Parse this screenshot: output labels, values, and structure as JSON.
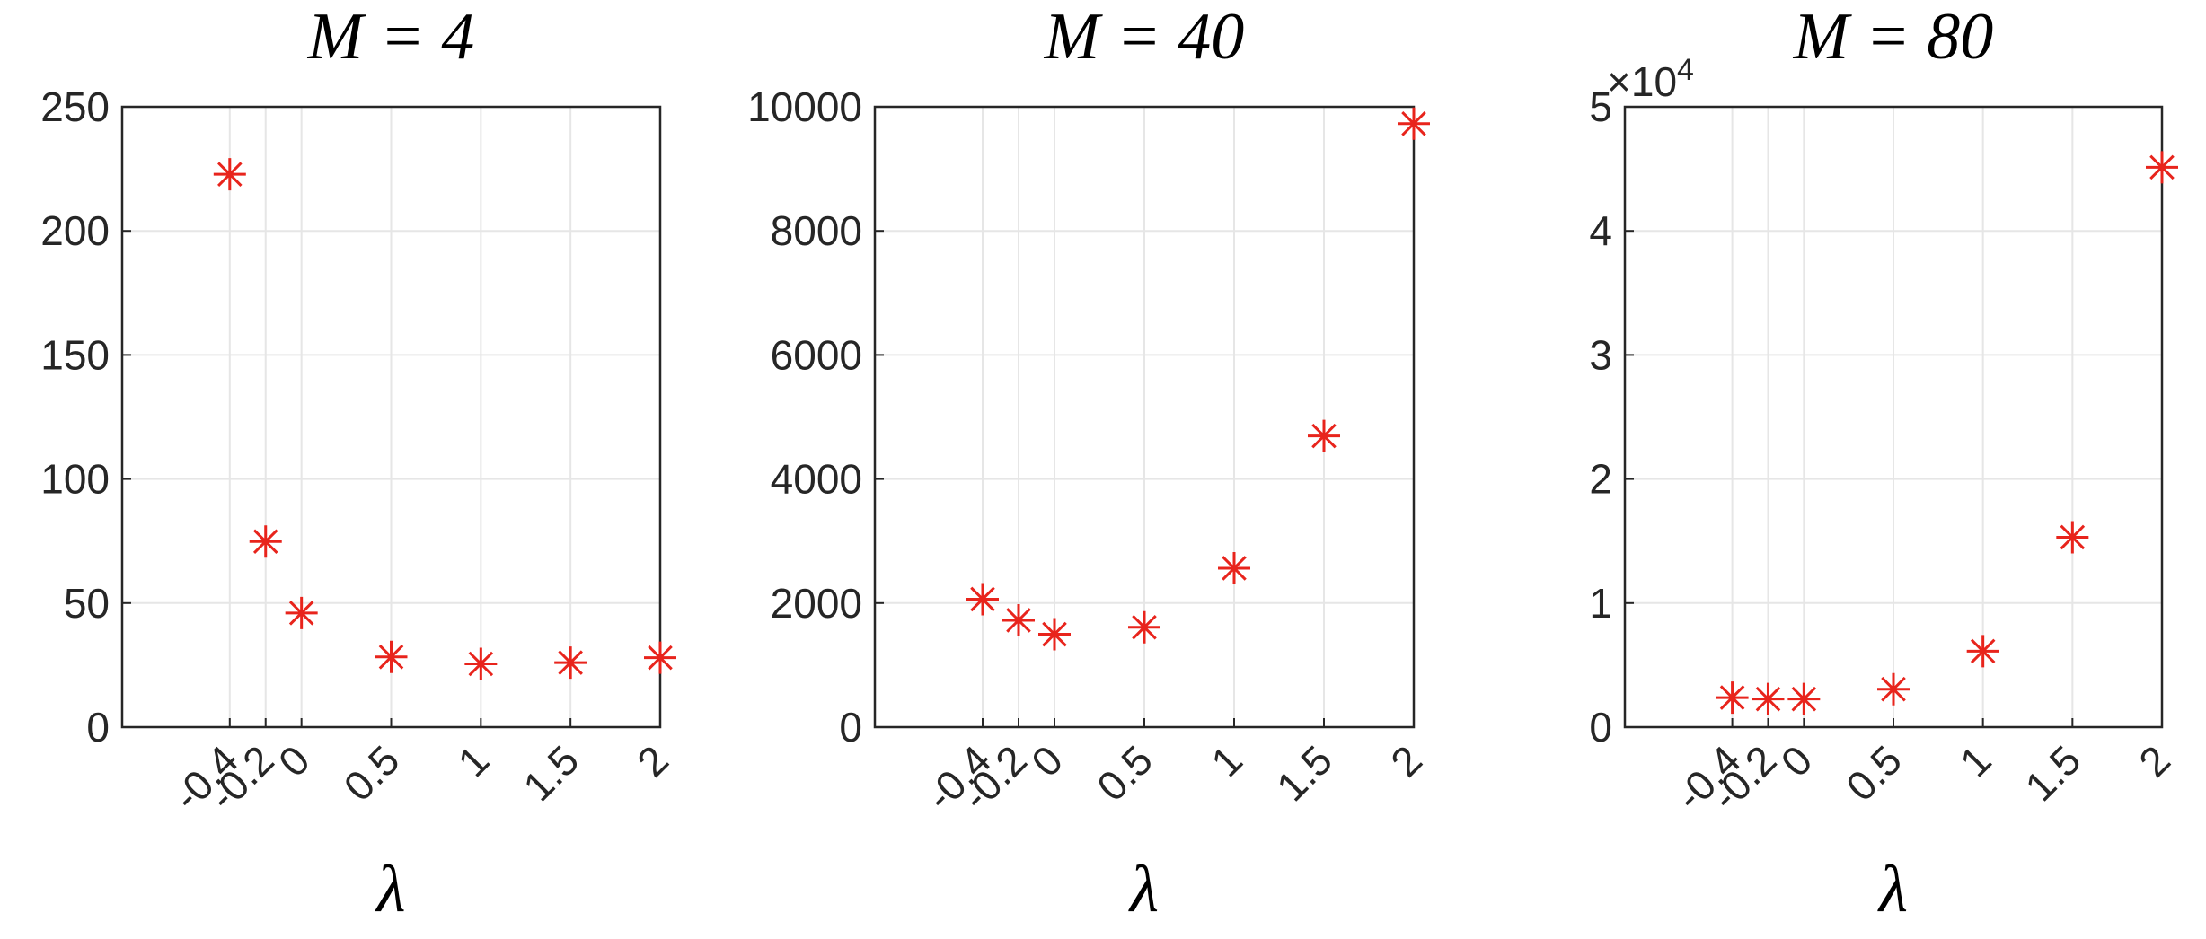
{
  "chart_data": [
    {
      "type": "scatter",
      "title": "M = 4",
      "x_label": "λ",
      "x": [
        -0.4,
        -0.2,
        0,
        0.5,
        1,
        1.5,
        2
      ],
      "series": [
        {
          "color": "#e8241c",
          "values": [
            222.8,
            74.8,
            46,
            28.3,
            25.5,
            26,
            28
          ]
        }
      ],
      "xlim": [
        -1,
        2
      ],
      "xticks": [
        -0.4,
        -0.2,
        0,
        0.5,
        1,
        1.5,
        2
      ],
      "ylim": [
        0,
        250
      ],
      "yticks": [
        0,
        50,
        100,
        150,
        200,
        250
      ],
      "grid": true
    },
    {
      "type": "scatter",
      "title": "M = 40",
      "x_label": "λ",
      "x": [
        -0.4,
        -0.2,
        0,
        0.5,
        1,
        1.5,
        2
      ],
      "series": [
        {
          "color": "#e8241c",
          "values": [
            2063,
            1723,
            1497,
            1610,
            2562,
            4694,
            9728
          ]
        }
      ],
      "xlim": [
        -1,
        2
      ],
      "xticks": [
        -0.4,
        -0.2,
        0,
        0.5,
        1,
        1.5,
        2
      ],
      "ylim": [
        0,
        10000
      ],
      "yticks": [
        0,
        2000,
        4000,
        6000,
        8000,
        10000
      ],
      "grid": true
    },
    {
      "type": "scatter",
      "title": "M = 80",
      "x_label": "λ",
      "y_multiplier": "×10",
      "y_exponent": "4",
      "x": [
        -0.4,
        -0.2,
        0,
        0.5,
        1,
        1.5,
        2
      ],
      "series": [
        {
          "color": "#e8241c",
          "values": [
            2381,
            2268,
            2268,
            3061,
            6122,
            15306,
            45125
          ]
        }
      ],
      "xlim": [
        -1,
        2
      ],
      "xticks": [
        -0.4,
        -0.2,
        0,
        0.5,
        1,
        1.5,
        2
      ],
      "ylim": [
        0,
        50000
      ],
      "yticks": [
        {
          "value": 0,
          "label": "0"
        },
        {
          "value": 10000,
          "label": "1"
        },
        {
          "value": 20000,
          "label": "2"
        },
        {
          "value": 30000,
          "label": "3"
        },
        {
          "value": 40000,
          "label": "4"
        },
        {
          "value": 50000,
          "label": "5"
        }
      ],
      "grid": true
    }
  ]
}
